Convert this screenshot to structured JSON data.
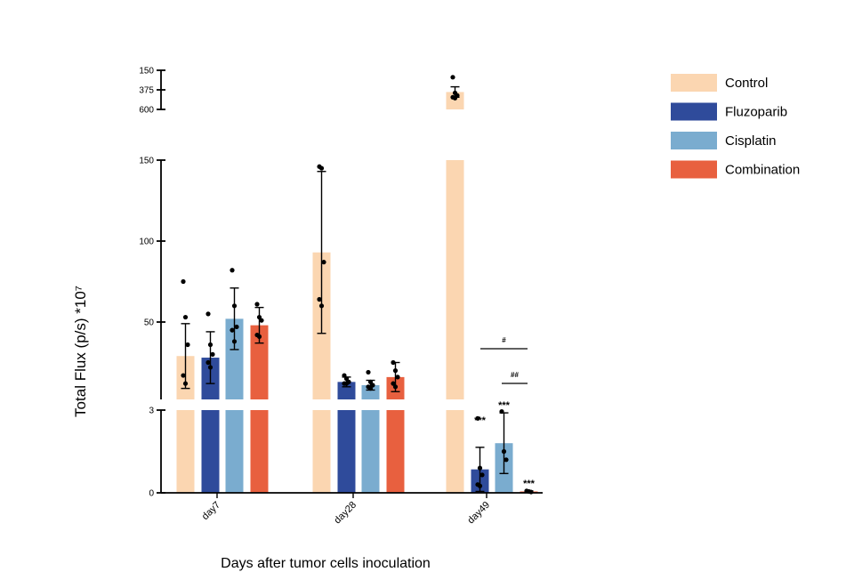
{
  "chart_data": {
    "type": "bar",
    "title": "",
    "xlabel": "Days after tumor cells inoculation",
    "ylabel": "Total Flux (p/s) *10⁷",
    "categories": [
      "day7",
      "day28",
      "day49"
    ],
    "y_axis_segments": [
      {
        "range": [
          0,
          3
        ],
        "ticks": [
          "0",
          "3"
        ]
      },
      {
        "range": [
          20,
          150
        ],
        "ticks": [
          "50",
          "100",
          "150"
        ]
      },
      {
        "range": [
          150,
          600
        ],
        "ticks": [
          "150",
          "375",
          "600"
        ]
      }
    ],
    "legend_position": "top-right",
    "grid": false,
    "series": [
      {
        "name": "Control",
        "color": "#FBD6B1",
        "values": [
          29,
          93,
          350
        ],
        "sd": [
          20,
          50,
          60
        ],
        "points": [
          [
            75,
            53,
            36,
            17,
            12
          ],
          [
            146,
            145,
            87,
            64,
            60
          ],
          [
            520,
            340,
            310,
            290,
            280
          ]
        ]
      },
      {
        "name": "Fluzoparib",
        "color": "#2F4B9B",
        "values": [
          28,
          13,
          0.85
        ],
        "sd": [
          16,
          3,
          0.8
        ],
        "points": [
          [
            55,
            36,
            30,
            25,
            22
          ],
          [
            17,
            15,
            13,
            12,
            12
          ],
          [
            2.7,
            0.9,
            0.65,
            0.3,
            0.25
          ]
        ]
      },
      {
        "name": "Cisplatin",
        "color": "#7AACCF",
        "values": [
          52,
          11,
          1.8
        ],
        "sd": [
          19,
          3,
          1.1
        ],
        "points": [
          [
            82,
            60,
            47,
            45,
            38
          ],
          [
            19,
            13,
            11,
            10,
            9
          ],
          [
            2.95,
            1.5,
            1.2
          ]
        ]
      },
      {
        "name": "Combination",
        "color": "#E8603F",
        "values": [
          48,
          16,
          0.05
        ],
        "sd": [
          11,
          9,
          0.02
        ],
        "points": [
          [
            61,
            53,
            51,
            42,
            41
          ],
          [
            25,
            20,
            16,
            12,
            10
          ],
          [
            0.07,
            0.05,
            0.03
          ]
        ]
      }
    ],
    "annotations": [
      {
        "text": "***",
        "category": "day49",
        "series": "Fluzoparib"
      },
      {
        "text": "***",
        "category": "day49",
        "series": "Cisplatin"
      },
      {
        "text": "***",
        "category": "day49",
        "series": "Combination"
      },
      {
        "text": "#",
        "from": "Fluzoparib",
        "to": "Combination",
        "category": "day49"
      },
      {
        "text": "##",
        "from": "Cisplatin",
        "to": "Combination",
        "category": "day49"
      }
    ]
  }
}
